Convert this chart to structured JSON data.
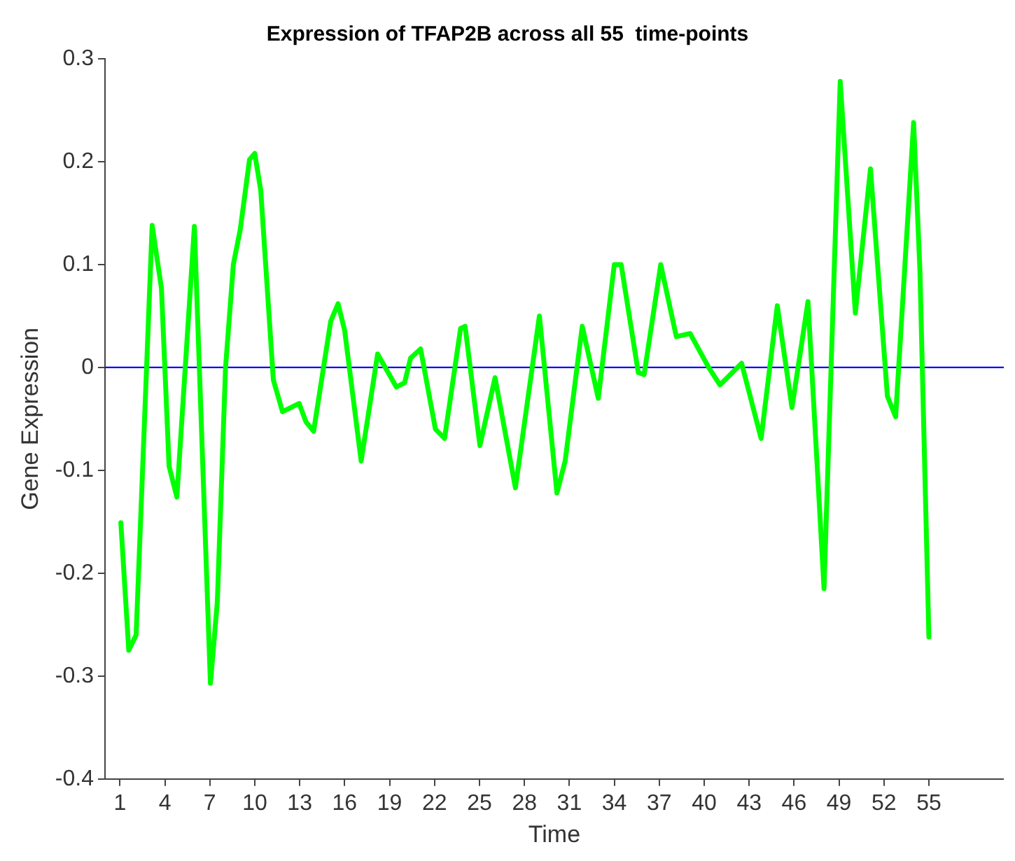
{
  "chart_data": {
    "type": "line",
    "title": "Expression of TFAP2B across all 55  time-points",
    "xlabel": "Time",
    "ylabel": "Gene Expression",
    "xlim": [
      0,
      60
    ],
    "xticks": [
      1,
      4,
      7,
      10,
      13,
      16,
      19,
      22,
      25,
      28,
      31,
      34,
      37,
      40,
      43,
      46,
      49,
      52,
      55
    ],
    "ylim": [
      -0.4,
      0.3
    ],
    "yticks": [
      -0.4,
      -0.3,
      -0.2,
      -0.1,
      0,
      0.1,
      0.2,
      0.3
    ],
    "grid": false,
    "legend": false,
    "ref_lines": [
      {
        "axis": "y",
        "value": 0,
        "color": "#0000ff"
      }
    ],
    "series": [
      {
        "color": "#00ff00",
        "x": [
          1.06,
          1.59,
          2.08,
          3.15,
          3.77,
          4.28,
          4.8,
          5.97,
          7.04,
          7.5,
          8.05,
          8.57,
          9.03,
          9.65,
          10.0,
          10.4,
          11.24,
          11.85,
          12.96,
          13.42,
          13.93,
          15.07,
          15.56,
          16.0,
          17.1,
          18.2,
          19.45,
          20.0,
          20.4,
          21.07,
          22.06,
          22.67,
          23.74,
          24.04,
          25.03,
          26.04,
          27.4,
          29.0,
          30.17,
          30.72,
          31.86,
          32.93,
          34.0,
          34.46,
          35.6,
          35.99,
          37.1,
          38.14,
          39.06,
          40.3,
          41.05,
          42.5,
          43.8,
          44.88,
          45.86,
          46.93,
          48.0,
          49.08,
          50.09,
          51.1,
          52.23,
          52.78,
          53.98,
          54.4,
          55.0
        ],
        "values": [
          -0.151,
          -0.275,
          -0.26,
          0.138,
          0.077,
          -0.096,
          -0.126,
          0.137,
          -0.307,
          -0.228,
          0,
          0.1,
          0.134,
          0.202,
          0.208,
          0.172,
          -0.012,
          -0.043,
          -0.035,
          -0.053,
          -0.062,
          0.045,
          0.062,
          0.036,
          -0.091,
          0.013,
          -0.019,
          -0.015,
          0.009,
          0.018,
          -0.06,
          -0.069,
          0.038,
          0.04,
          -0.076,
          -0.01,
          -0.117,
          0.05,
          -0.122,
          -0.091,
          0.04,
          -0.03,
          0.1,
          0.1,
          -0.005,
          -0.007,
          0.1,
          0.03,
          0.033,
          0,
          -0.017,
          0.004,
          -0.069,
          0.06,
          -0.039,
          0.064,
          -0.215,
          0.278,
          0.053,
          0.193,
          -0.028,
          -0.048,
          0.238,
          0.095,
          -0.262
        ]
      }
    ]
  }
}
